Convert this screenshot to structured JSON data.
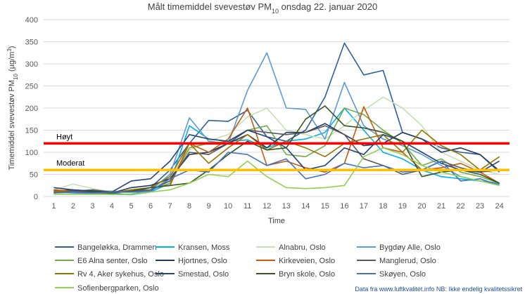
{
  "chart_data": {
    "type": "line",
    "title": "Målt timemiddel svevestøv PM",
    "title_sub": "10",
    "title_suffix": " onsdag 22. januar 2020",
    "xlabel": "Time",
    "ylabel_parts": [
      "Timemiddel svevestøv PM",
      "10",
      " (µg/m",
      "3",
      ")"
    ],
    "x": [
      1,
      2,
      3,
      4,
      5,
      6,
      7,
      8,
      9,
      10,
      11,
      12,
      13,
      14,
      15,
      16,
      17,
      18,
      19,
      20,
      21,
      22,
      23,
      24
    ],
    "ylim": [
      0,
      400
    ],
    "yticks": [
      0,
      50,
      100,
      150,
      200,
      250,
      300,
      350,
      400
    ],
    "grid": true,
    "legend_position": "bottom",
    "thresholds": [
      {
        "label": "Høyt",
        "value": 120,
        "color": "#ff0000"
      },
      {
        "label": "Moderat",
        "value": 60,
        "color": "#ffc000"
      }
    ],
    "series": [
      {
        "name": "Bangeløkka, Drammen",
        "color": "#2e5e9e",
        "values": [
          15,
          10,
          8,
          7,
          10,
          20,
          60,
          120,
          172,
          170,
          195,
          135,
          125,
          150,
          225,
          347,
          275,
          285,
          145,
          130,
          110,
          100,
          95,
          55
        ]
      },
      {
        "name": "Kransen, Moss",
        "color": "#00b0f0",
        "values": [
          10,
          8,
          6,
          5,
          4,
          10,
          30,
          160,
          130,
          125,
          128,
          110,
          125,
          130,
          145,
          200,
          150,
          100,
          85,
          60,
          45,
          40,
          35,
          28
        ]
      },
      {
        "name": "Alnabru, Oslo",
        "color": "#c5e0b4",
        "values": [
          15,
          28,
          18,
          10,
          8,
          12,
          45,
          105,
          125,
          140,
          180,
          200,
          150,
          140,
          130,
          160,
          195,
          225,
          200,
          160,
          100,
          80,
          60,
          50
        ]
      },
      {
        "name": "Bygdøy Alle, Oslo",
        "color": "#5b9bd5",
        "values": [
          10,
          8,
          6,
          5,
          5,
          15,
          50,
          178,
          125,
          120,
          240,
          325,
          200,
          197,
          130,
          258,
          160,
          130,
          115,
          95,
          70,
          45,
          35,
          30
        ]
      },
      {
        "name": "E6 Alna senter, Oslo",
        "color": "#70ad47",
        "values": [
          8,
          10,
          12,
          12,
          10,
          15,
          30,
          110,
          120,
          125,
          150,
          160,
          95,
          90,
          115,
          200,
          185,
          150,
          120,
          70,
          85,
          55,
          45,
          30
        ]
      },
      {
        "name": "Hjortnes, Oslo",
        "color": "#1f3864",
        "values": [
          12,
          15,
          12,
          8,
          20,
          25,
          40,
          95,
          100,
          120,
          140,
          110,
          145,
          145,
          165,
          140,
          115,
          120,
          145,
          130,
          100,
          110,
          95,
          58
        ]
      },
      {
        "name": "Kirkeveien, Oslo",
        "color": "#c55a11",
        "values": [
          15,
          12,
          10,
          8,
          15,
          20,
          25,
          120,
          100,
          130,
          200,
          70,
          80,
          65,
          55,
          75,
          203,
          110,
          100,
          60,
          65,
          75,
          55,
          30
        ]
      },
      {
        "name": "Manglerud, Oslo",
        "color": "#595959",
        "values": [
          10,
          12,
          15,
          10,
          12,
          15,
          35,
          100,
          95,
          120,
          150,
          145,
          140,
          145,
          160,
          140,
          85,
          70,
          50,
          60,
          80,
          65,
          55,
          60
        ]
      },
      {
        "name": "Rv 4, Aker sykehus, Oslo",
        "color": "#997300",
        "values": [
          12,
          10,
          8,
          8,
          15,
          20,
          45,
          120,
          75,
          110,
          140,
          105,
          125,
          110,
          90,
          120,
          130,
          140,
          100,
          150,
          115,
          95,
          60,
          90
        ]
      },
      {
        "name": "Smestad, Oslo",
        "color": "#264478",
        "values": [
          20,
          15,
          12,
          10,
          35,
          40,
          80,
          140,
          130,
          125,
          150,
          135,
          110,
          60,
          70,
          110,
          95,
          140,
          125,
          100,
          75,
          60,
          55,
          80
        ]
      },
      {
        "name": "Bryn skole, Oslo",
        "color": "#375623",
        "values": [
          8,
          10,
          10,
          8,
          12,
          20,
          25,
          30,
          60,
          95,
          125,
          105,
          110,
          175,
          205,
          160,
          155,
          145,
          125,
          45,
          55,
          60,
          50,
          30
        ]
      },
      {
        "name": "Skøyen, Oslo",
        "color": "#4472c4",
        "values": [
          8,
          10,
          8,
          10,
          10,
          12,
          40,
          60,
          55,
          100,
          95,
          70,
          85,
          40,
          50,
          75,
          65,
          70,
          55,
          60,
          80,
          35,
          40,
          25
        ]
      },
      {
        "name": "Sofienbergparken, Oslo",
        "color": "#92d050",
        "values": [
          5,
          5,
          5,
          5,
          5,
          10,
          15,
          30,
          50,
          45,
          80,
          45,
          20,
          18,
          20,
          25,
          90,
          110,
          95,
          70,
          55,
          45,
          35,
          25
        ]
      }
    ],
    "source_note": "Data fra www.luftkvalitet.info NB: Ikke endelig kvalitetssikret"
  }
}
